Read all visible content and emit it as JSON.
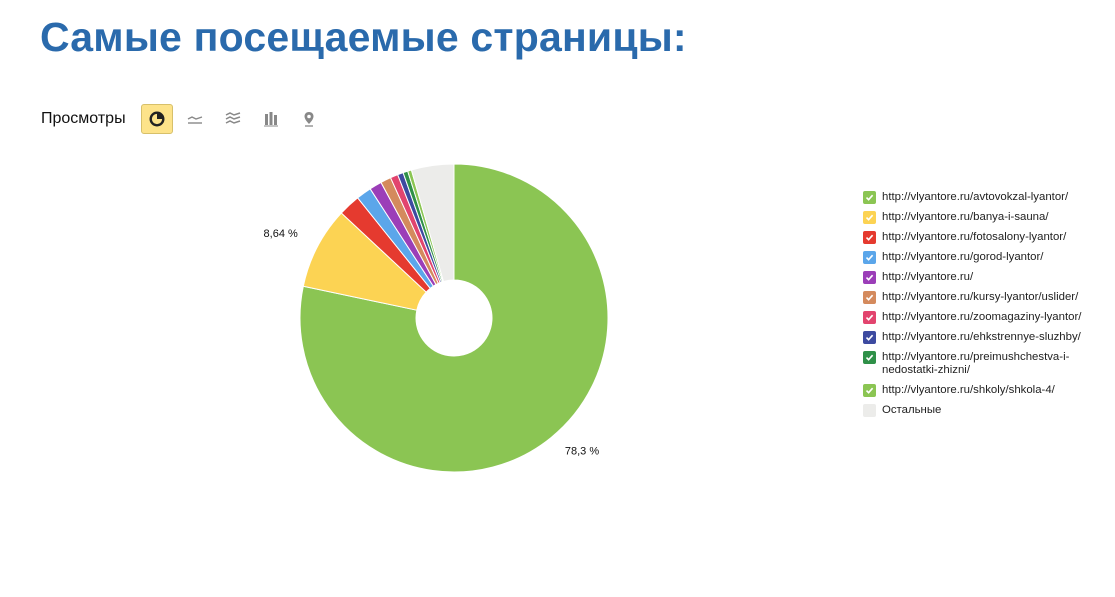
{
  "page_title": "Самые посещаемые страницы:",
  "toolbar": {
    "metric_label": "Просмотры",
    "buttons": [
      {
        "icon": "pie-chart-icon",
        "active": true
      },
      {
        "icon": "line-chart-icon",
        "active": false
      },
      {
        "icon": "area-chart-icon",
        "active": false
      },
      {
        "icon": "bar-chart-icon",
        "active": false
      },
      {
        "icon": "map-icon",
        "active": false
      }
    ]
  },
  "chart_data": {
    "type": "pie",
    "title": "",
    "categories": [
      "http://vlyantore.ru/avtovokzal-lyantor/",
      "http://vlyantore.ru/banya-i-sauna/",
      "http://vlyantore.ru/fotosalony-lyantor/",
      "http://vlyantore.ru/gorod-lyantor/",
      "http://vlyantore.ru/",
      "http://vlyantore.ru/kursy-lyantor/uslider/",
      "http://vlyantore.ru/zoomagaziny-lyantor/",
      "http://vlyantore.ru/ehkstrennye-sluzhby/",
      "http://vlyantore.ru/preimushchestva-i-nedostatki-zhizni/",
      "http://vlyantore.ru/shkoly/shkola-4/",
      "Остальные"
    ],
    "values": [
      78.3,
      8.64,
      2.3,
      1.6,
      1.3,
      1.1,
      0.8,
      0.6,
      0.5,
      0.4,
      4.46
    ],
    "colors": [
      "#8bc553",
      "#fcd353",
      "#e53a2f",
      "#5ba6ea",
      "#9b3eb8",
      "#d48a5d",
      "#e2446e",
      "#3d4aa0",
      "#2f9048",
      "#8bc553",
      "#ececea"
    ],
    "data_labels": [
      {
        "index": 0,
        "text": "78,3 %"
      },
      {
        "index": 1,
        "text": "8,64 %"
      }
    ],
    "legend_position": "right"
  }
}
